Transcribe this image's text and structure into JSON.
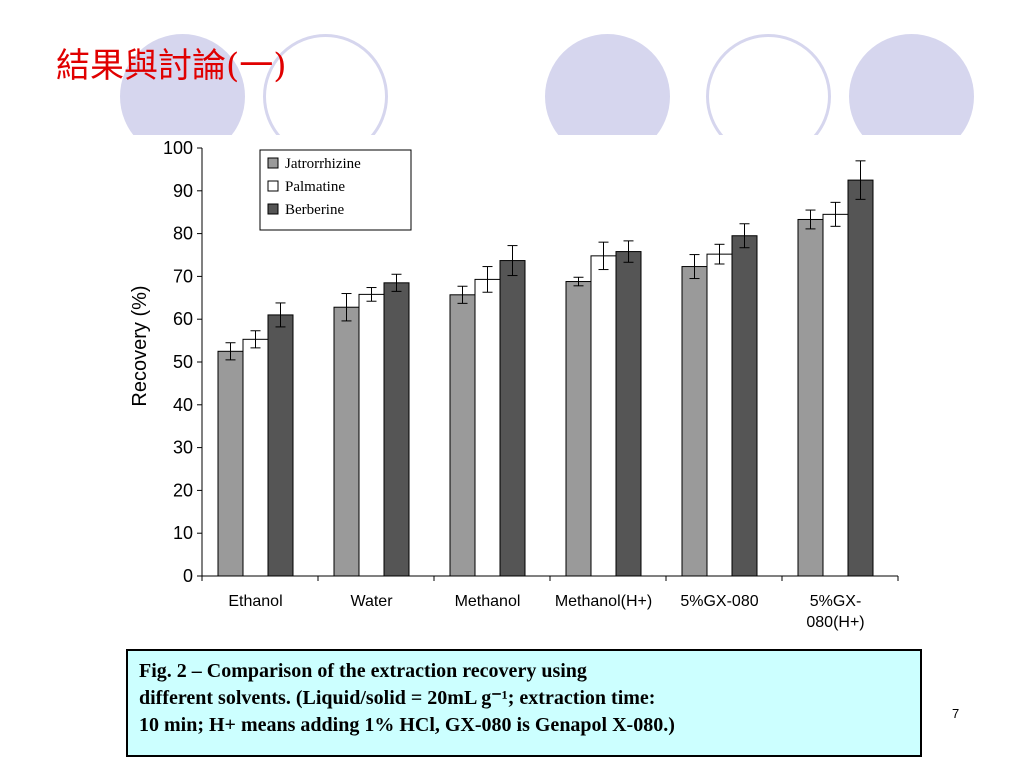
{
  "slide": {
    "title": "結果與討論(一)",
    "page_number": "7"
  },
  "caption": {
    "lines": [
      "Fig. 2 – Comparison of the extraction recovery using",
      "different solvents. (Liquid/solid = 20mL g⁻¹; extraction time:",
      "10 min; H+ means adding 1% HCl, GX-080 is Genapol X-080.)"
    ]
  },
  "colors": {
    "title": "#e00000",
    "decoration": "#d6d6ee",
    "caption_background": "#ccffff"
  },
  "chart_data": {
    "type": "bar",
    "title": "",
    "xlabel": "",
    "ylabel": "Recovery (%)",
    "ylim": [
      0,
      100
    ],
    "yticks": [
      0,
      10,
      20,
      30,
      40,
      50,
      60,
      70,
      80,
      90,
      100
    ],
    "grid": false,
    "legend_position": "top-left",
    "categories": [
      [
        "Ethanol"
      ],
      [
        "Water"
      ],
      [
        "Methanol"
      ],
      [
        "Methanol(H+)"
      ],
      [
        "5%GX-080"
      ],
      [
        "5%GX-",
        "080(H+)"
      ]
    ],
    "series": [
      {
        "name": "Jatrorrhizine",
        "color": "#9a9a9a",
        "values": [
          52.5,
          62.8,
          65.7,
          68.8,
          72.3,
          83.3
        ],
        "errors": [
          2.0,
          3.2,
          2.0,
          1.0,
          2.8,
          2.2
        ]
      },
      {
        "name": "Palmatine",
        "color": "#ffffff",
        "values": [
          55.3,
          65.8,
          69.3,
          74.8,
          75.2,
          84.5
        ],
        "errors": [
          2.0,
          1.6,
          3.0,
          3.2,
          2.3,
          2.8
        ]
      },
      {
        "name": "Berberine",
        "color": "#555555",
        "values": [
          61.0,
          68.5,
          73.7,
          75.8,
          79.5,
          92.5
        ],
        "errors": [
          2.8,
          2.0,
          3.5,
          2.5,
          2.8,
          4.5
        ]
      }
    ]
  }
}
